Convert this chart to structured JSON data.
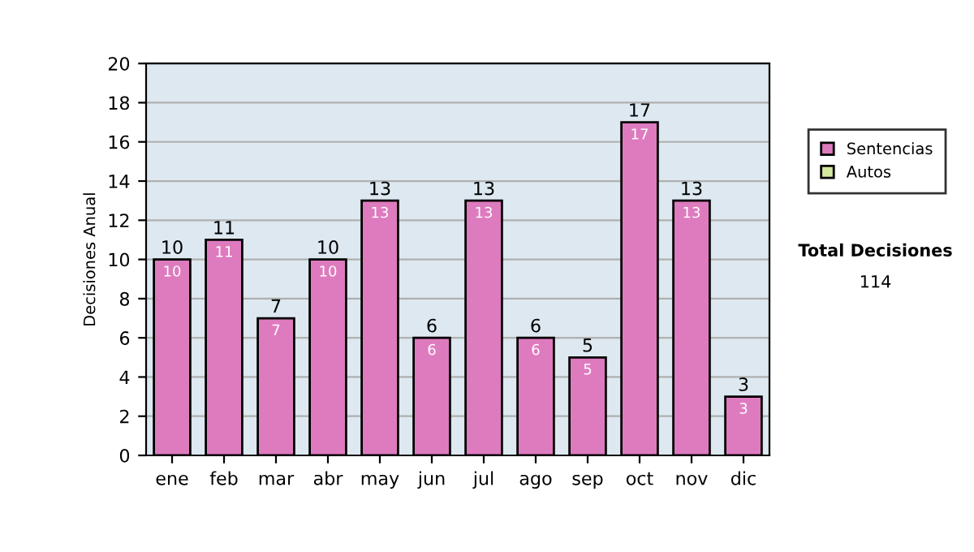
{
  "chart_data": {
    "type": "bar",
    "stacked": true,
    "ylabel": "Decisiones Anual",
    "categories": [
      "ene",
      "feb",
      "mar",
      "abr",
      "may",
      "jun",
      "jul",
      "ago",
      "sep",
      "oct",
      "nov",
      "dic"
    ],
    "series": [
      {
        "name": "Sentencias",
        "color": "#de7bbf",
        "values": [
          10,
          11,
          7,
          10,
          13,
          6,
          13,
          6,
          5,
          17,
          13,
          3
        ],
        "value_labels": [
          "10",
          "11",
          "7",
          "10",
          "13",
          "6",
          "13",
          "6",
          "5",
          "17",
          "13",
          "3"
        ]
      },
      {
        "name": "Autos",
        "color": "#d4e8a0",
        "values": [
          null,
          null,
          null,
          null,
          null,
          null,
          null,
          null,
          null,
          null,
          null,
          null
        ]
      }
    ],
    "totals": [
      "10",
      "11",
      "7",
      "10",
      "13",
      "6",
      "13",
      "6",
      "5",
      "17",
      "13",
      "3"
    ],
    "ylim": [
      0,
      20
    ],
    "yticks": [
      0,
      2,
      4,
      6,
      8,
      10,
      12,
      14,
      16,
      18,
      20
    ],
    "grid": "y",
    "legend": "right",
    "annotations": [
      "Total Decisiones",
      "114"
    ]
  }
}
